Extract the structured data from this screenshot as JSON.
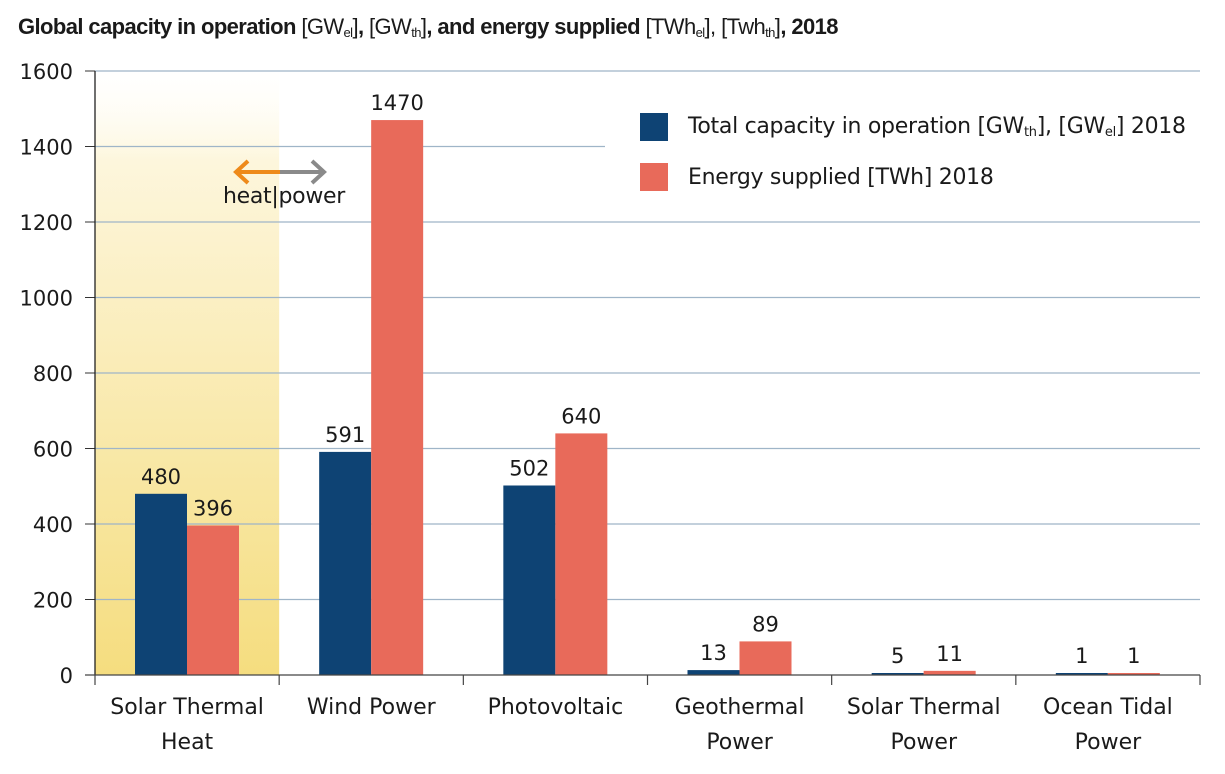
{
  "chart_data": {
    "type": "bar",
    "title": {
      "parts": [
        {
          "text": "Global capacity in operation ",
          "bold": true
        },
        {
          "text": "[GW",
          "bold": false
        },
        {
          "sub": "el",
          "bold": false
        },
        {
          "text": "]",
          "bold": false
        },
        {
          "text": ", ",
          "bold": true
        },
        {
          "text": "[GW",
          "bold": false
        },
        {
          "sub": "th",
          "bold": false
        },
        {
          "text": "]",
          "bold": false
        },
        {
          "text": ", and energy supplied ",
          "bold": true
        },
        {
          "text": "[TWh",
          "bold": false
        },
        {
          "sub": "el",
          "bold": false
        },
        {
          "text": "]",
          "bold": false
        },
        {
          "text": ", ",
          "bold": false
        },
        {
          "text": "[Twh",
          "bold": false
        },
        {
          "sub": "th",
          "bold": false
        },
        {
          "text": "]",
          "bold": false
        },
        {
          "text": ", 2018",
          "bold": true
        }
      ]
    },
    "xlabel": "",
    "ylabel": "",
    "ylim": [
      0,
      1600
    ],
    "yticks": [
      0,
      200,
      400,
      600,
      800,
      1000,
      1200,
      1400,
      1600
    ],
    "grid": true,
    "legend_position": "top-right",
    "categories": [
      [
        "Solar Thermal",
        "Heat"
      ],
      [
        "Wind Power"
      ],
      [
        "Photovoltaic"
      ],
      [
        "Geothermal",
        "Power"
      ],
      [
        "Solar Thermal",
        "Power"
      ],
      [
        "Ocean Tidal",
        "Power"
      ]
    ],
    "series": [
      {
        "name_parts": [
          {
            "text": "Total capacity in operation [GW"
          },
          {
            "sub": "th"
          },
          {
            "text": "], [GW"
          },
          {
            "sub": "el"
          },
          {
            "text": "] 2018"
          }
        ],
        "color": "#0e4374",
        "values": [
          480,
          591,
          502,
          13,
          5,
          1
        ]
      },
      {
        "name_parts": [
          {
            "text": "Energy supplied [TWh] 2018"
          }
        ],
        "color": "#e86a5a",
        "values": [
          396,
          1470,
          640,
          89,
          11,
          1
        ]
      }
    ],
    "annotation": {
      "left_label": "heat",
      "separator": "|",
      "right_label": "power",
      "left_arrow_color": "#ee8a1a",
      "right_arrow_color": "#8a8a8a",
      "highlight_category": 0,
      "highlight_color": "#f5dd7f"
    }
  }
}
